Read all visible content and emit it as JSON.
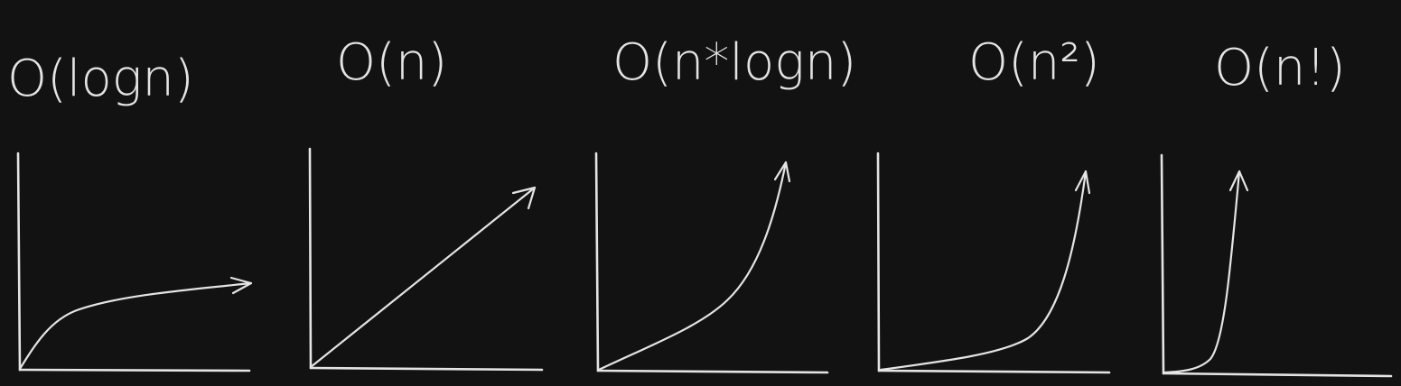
{
  "colors": {
    "background": "#121212",
    "stroke": "#e4e4e4"
  },
  "panels": [
    {
      "id": "log-n",
      "title": "O(logn)",
      "shape": "logarithmic"
    },
    {
      "id": "n",
      "title": "O(n)",
      "shape": "linear"
    },
    {
      "id": "n-log-n",
      "title": "O(n*logn)",
      "shape": "linearithmic"
    },
    {
      "id": "n-squared",
      "title": "O(n²)",
      "shape": "quadratic"
    },
    {
      "id": "n-factorial",
      "title": "O(n!)",
      "shape": "factorial"
    }
  ]
}
